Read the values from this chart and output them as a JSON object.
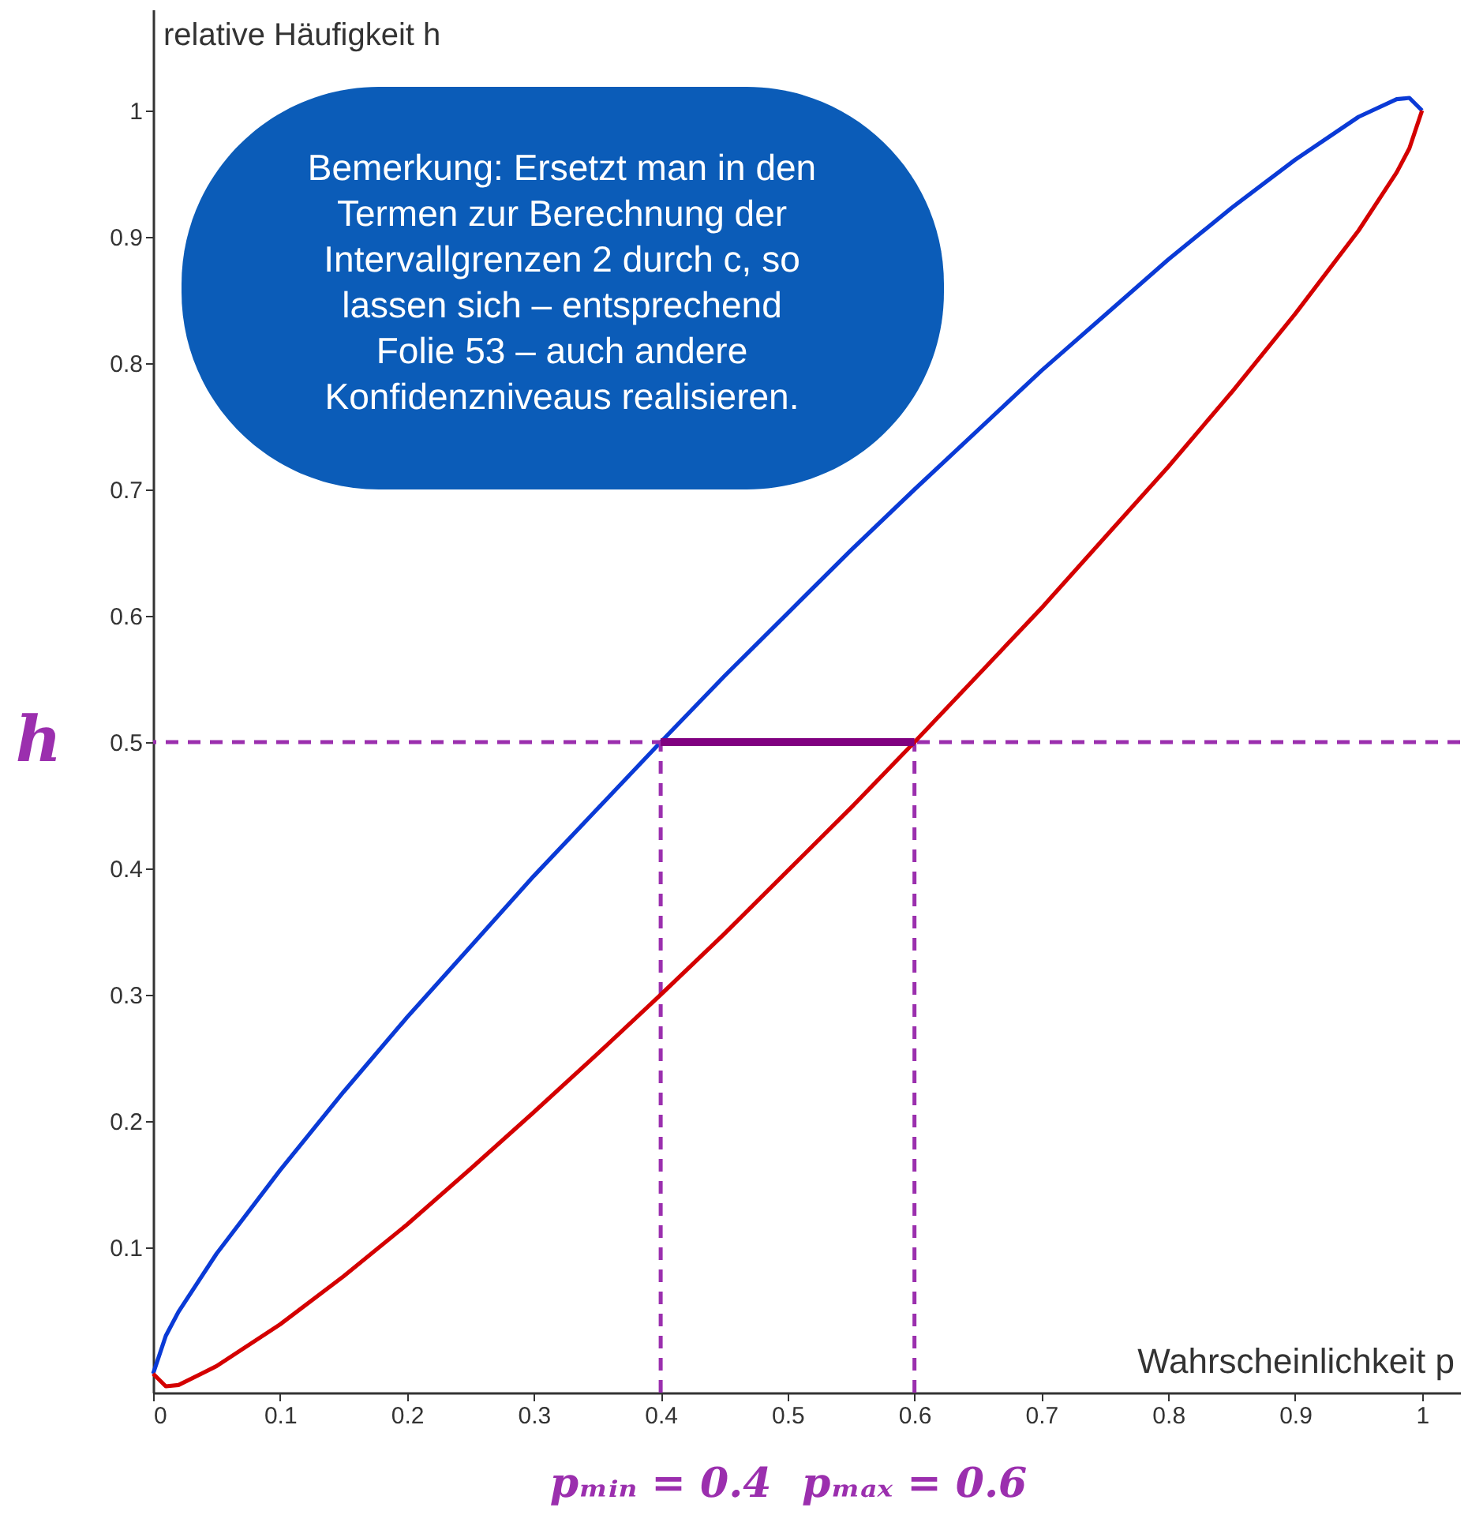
{
  "chart_data": {
    "type": "line",
    "xlabel": "Wahrscheinlichkeit p",
    "ylabel": "relative Häufigkeit h",
    "x": [
      0,
      0.01,
      0.02,
      0.05,
      0.1,
      0.15,
      0.2,
      0.25,
      0.3,
      0.35,
      0.4,
      0.45,
      0.5,
      0.55,
      0.6,
      0.65,
      0.7,
      0.75,
      0.8,
      0.85,
      0.9,
      0.95,
      0.98,
      0.99,
      1
    ],
    "series": [
      {
        "color": "#0a3ad6",
        "values": [
          0,
          0.03,
          0.049,
          0.095,
          0.161,
          0.223,
          0.282,
          0.338,
          0.394,
          0.447,
          0.5,
          0.552,
          0.602,
          0.652,
          0.7,
          0.747,
          0.794,
          0.838,
          0.882,
          0.923,
          0.961,
          0.995,
          1.009,
          1.01,
          1
        ]
      },
      {
        "color": "#d40000",
        "values": [
          0,
          -0.01,
          -0.009,
          0.006,
          0.039,
          0.077,
          0.118,
          0.162,
          0.207,
          0.253,
          0.3,
          0.348,
          0.398,
          0.448,
          0.5,
          0.553,
          0.606,
          0.662,
          0.718,
          0.777,
          0.839,
          0.905,
          0.951,
          0.97,
          1
        ]
      },
      {
        "color": "#800080",
        "x": [
          0.4,
          0.6
        ],
        "values": [
          0.5,
          0.5
        ]
      }
    ],
    "xlim": [
      0,
      1.03
    ],
    "ylim": [
      -0.015,
      1.08
    ],
    "xticks": [
      0,
      0.1,
      0.2,
      0.3,
      0.4,
      0.5,
      0.6,
      0.7,
      0.8,
      0.9,
      1
    ],
    "yticks": [
      0.1,
      0.2,
      0.3,
      0.4,
      0.5,
      0.6,
      0.7,
      0.8,
      0.9,
      1
    ],
    "ref_lines": [
      {
        "axis": "y",
        "value": 0.5,
        "label": "h",
        "color": "#9b2fae",
        "line_style": "dashed"
      },
      {
        "axis": "x",
        "value": 0.4,
        "label": "pₘᵢₙ = 0.4",
        "color": "#9b2fae",
        "line_style": "dashed"
      },
      {
        "axis": "x",
        "value": 0.6,
        "label": "pₘₐₓ = 0.6",
        "color": "#9b2fae",
        "line_style": "dashed"
      }
    ],
    "annotations": [
      "Bemerkung: Ersetzt man in den Termen zur Berechnung der Intervallgrenzen 2 durch c, so lassen sich – entsprechend Folie 53 – auch andere Konfidenzniveaus realisieren."
    ],
    "grid": false,
    "marker": "none",
    "line_style": "solid"
  }
}
